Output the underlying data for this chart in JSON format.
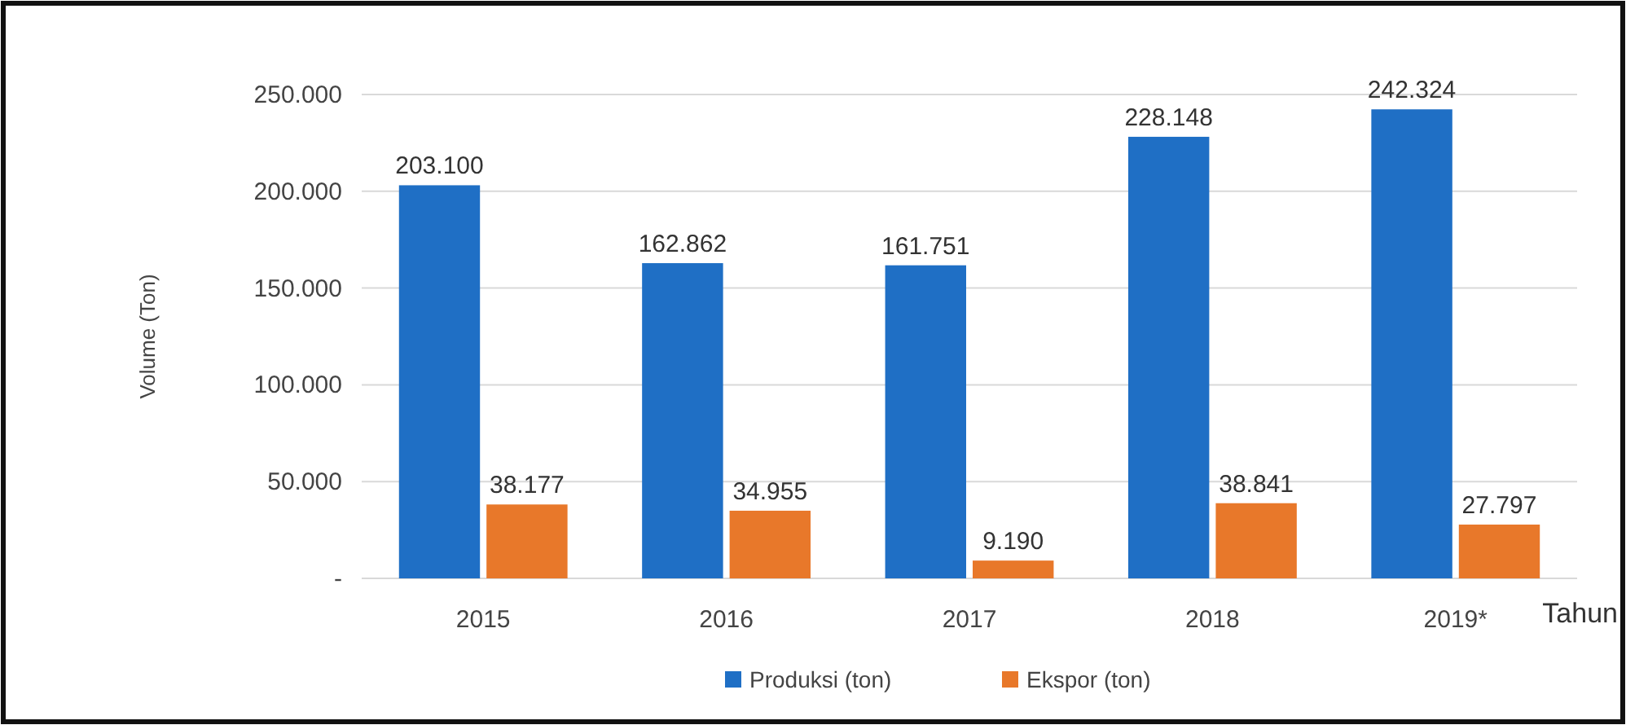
{
  "chart_data": {
    "type": "bar",
    "xlabel": "Tahun",
    "ylabel": "Volume (Ton)",
    "categories": [
      "2015",
      "2016",
      "2017",
      "2018",
      "2019*"
    ],
    "series": [
      {
        "name": "Produksi (ton)",
        "color": "#1f6fc5",
        "values": [
          203100,
          162862,
          161751,
          228148,
          242324
        ],
        "value_labels": [
          "203.100",
          "162.862",
          "161.751",
          "228.148",
          "242.324"
        ]
      },
      {
        "name": "Ekspor (ton)",
        "color": "#e8782a",
        "values": [
          38177,
          34955,
          9190,
          38841,
          27797
        ],
        "value_labels": [
          "38.177",
          "34.955",
          "9.190",
          "38.841",
          "27.797"
        ]
      }
    ],
    "ylim": [
      0,
      250000
    ],
    "yticks": [
      {
        "value": 0,
        "label": "-"
      },
      {
        "value": 50000,
        "label": "50.000"
      },
      {
        "value": 100000,
        "label": "100.000"
      },
      {
        "value": 150000,
        "label": "150.000"
      },
      {
        "value": 200000,
        "label": "200.000"
      },
      {
        "value": 250000,
        "label": "250.000"
      }
    ],
    "grid": "y",
    "legend": "bottom"
  }
}
